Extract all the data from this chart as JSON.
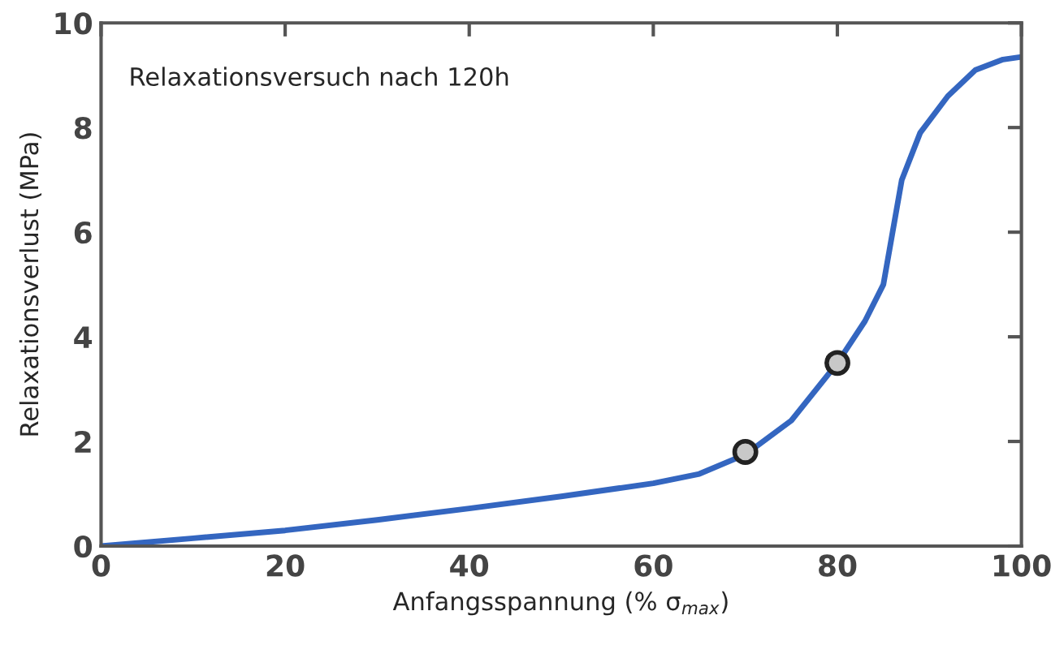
{
  "chart_data": {
    "type": "line",
    "xlabel": "Anfangsspannung (% σ$_{max}$)",
    "ylabel": "Relaxationsverlust (MPa)",
    "annotations": [
      "Relaxationsversuch nach 120h"
    ],
    "series": [
      {
        "color": "#3466c0",
        "x": [
          0,
          10,
          20,
          30,
          40,
          50,
          60,
          65,
          70,
          75,
          80,
          83,
          85,
          86,
          87,
          89,
          92,
          95,
          98,
          100
        ],
        "values": [
          0,
          0.15,
          0.3,
          0.5,
          0.72,
          0.95,
          1.2,
          1.38,
          1.75,
          2.4,
          3.5,
          4.3,
          5.0,
          6.0,
          7.0,
          7.9,
          8.6,
          9.1,
          9.3,
          9.35
        ]
      },
      {
        "type": "scatter",
        "color": "#c8c8c8",
        "marker": "circle",
        "x": [
          70,
          80
        ],
        "values": [
          1.8,
          3.5
        ]
      }
    ],
    "xlim": [
      0,
      100
    ],
    "ylim": [
      0,
      10
    ],
    "xticks": [
      0,
      20,
      40,
      60,
      80,
      100
    ],
    "yticks": [
      0,
      2,
      4,
      6,
      8,
      10
    ],
    "grid": false,
    "legend": false
  }
}
